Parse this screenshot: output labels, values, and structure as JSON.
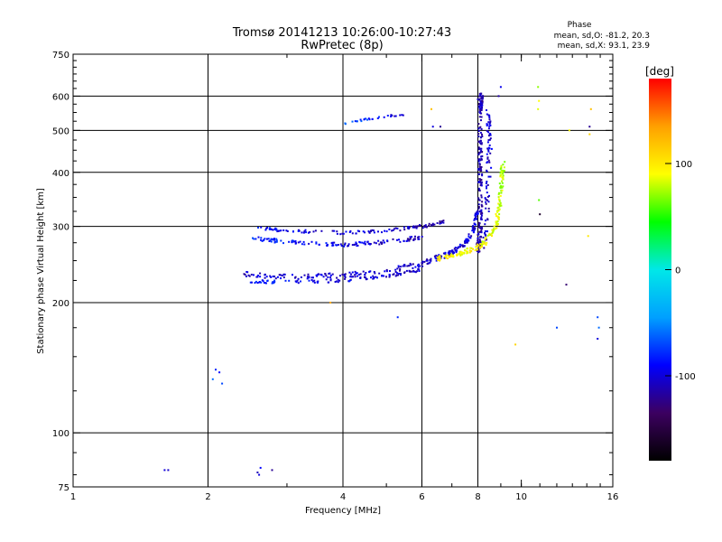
{
  "header": {
    "title_line1": "Tromsø 20141213 10:26:00-10:27:43",
    "title_line2": "RwPretec (8p)",
    "phase_heading": "Phase",
    "phase_stats_o": "mean, sd,O: -81.2, 20.3",
    "phase_stats_x": "mean, sd,X:  93.1, 23.9"
  },
  "chart_data": {
    "type": "scatter",
    "title": "Tromsø 20141213 10:26:00-10:27:43",
    "subtitle": "RwPretec (8p)",
    "xlabel": "Frequency [MHz]",
    "ylabel": "Stationary phase Virtual Height [km]",
    "x_scale": "log",
    "y_scale": "log",
    "xlim": [
      1,
      16
    ],
    "ylim": [
      75,
      750
    ],
    "xticks": [
      1,
      2,
      4,
      6,
      8,
      10,
      16
    ],
    "xtick_labels": [
      "1",
      "2",
      "4",
      "6",
      "8",
      "10",
      "16"
    ],
    "xgrid": [
      2,
      4,
      6,
      8
    ],
    "xminor": [
      3,
      5,
      7,
      9,
      10,
      11,
      12,
      13,
      14,
      15
    ],
    "yticks": [
      75,
      100,
      200,
      300,
      400,
      500,
      600,
      750
    ],
    "ytick_labels": [
      "75",
      "100",
      "200",
      "300",
      "400",
      "500",
      "600",
      "750"
    ],
    "ygrid": [
      100,
      200,
      300,
      400,
      500,
      600
    ],
    "yminor": [
      80,
      90,
      125,
      150,
      175,
      225,
      250,
      275,
      325,
      350,
      375,
      425,
      450,
      475,
      525,
      550,
      575,
      625,
      650,
      675,
      700,
      725
    ],
    "grid": true,
    "colorbar": {
      "label": "[deg]",
      "range": [
        -180,
        180
      ],
      "ticks": [
        100,
        0,
        -100
      ],
      "tick_labels": [
        "100",
        "0",
        "-100"
      ],
      "colors": [
        "#000000",
        "#3c0060",
        "#0000ff",
        "#00a0ff",
        "#00e8e8",
        "#00ff00",
        "#ffff00",
        "#ffa000",
        "#ff0000"
      ]
    },
    "series": [
      {
        "polyline": [
          [
            2.4,
            233
          ],
          [
            3.0,
            229
          ],
          [
            4.0,
            231
          ],
          [
            5.0,
            236
          ],
          [
            6.0,
            246
          ],
          [
            6.8,
            258
          ],
          [
            7.4,
            270
          ],
          [
            7.8,
            290
          ],
          [
            8.0,
            330
          ]
        ],
        "phase": [
          -105,
          -100
        ],
        "count": 260,
        "jitter_x": 0.008,
        "jitter_y": 0.014
      },
      {
        "polyline": [
          [
            2.4,
            224
          ],
          [
            3.0,
            223
          ],
          [
            4.0,
            225
          ],
          [
            5.0,
            230
          ],
          [
            6.0,
            238
          ]
        ],
        "phase": [
          -80,
          -110
        ],
        "count": 100,
        "jitter_x": 0.008,
        "jitter_y": 0.008
      },
      {
        "polyline": [
          [
            2.5,
            282
          ],
          [
            3.0,
            276
          ],
          [
            4.0,
            272
          ],
          [
            5.0,
            276
          ],
          [
            6.0,
            283
          ]
        ],
        "phase": [
          -80,
          -110
        ],
        "count": 130,
        "jitter_x": 0.008,
        "jitter_y": 0.01
      },
      {
        "polyline": [
          [
            2.6,
            297
          ],
          [
            3.0,
            293
          ],
          [
            4.0,
            290
          ],
          [
            5.0,
            293
          ],
          [
            6.0,
            300
          ],
          [
            6.8,
            308
          ]
        ],
        "phase": [
          -90,
          -115
        ],
        "count": 120,
        "jitter_x": 0.008,
        "jitter_y": 0.008
      },
      {
        "polyline": [
          [
            8.0,
            260
          ],
          [
            8.1,
            300
          ],
          [
            8.1,
            380
          ],
          [
            8.1,
            470
          ],
          [
            8.1,
            560
          ],
          [
            8.15,
            610
          ]
        ],
        "phase": [
          -115,
          -110
        ],
        "count": 220,
        "jitter_x": 0.01,
        "jitter_y": 0.01
      },
      {
        "polyline": [
          [
            8.3,
            270
          ],
          [
            8.4,
            350
          ],
          [
            8.5,
            450
          ],
          [
            8.45,
            550
          ]
        ],
        "phase": [
          -110,
          -100
        ],
        "count": 80,
        "jitter_x": 0.012,
        "jitter_y": 0.015
      },
      {
        "polyline": [
          [
            6.5,
            252
          ],
          [
            7.5,
            262
          ],
          [
            8.2,
            272
          ],
          [
            8.8,
            300
          ],
          [
            9.0,
            360
          ],
          [
            9.1,
            420
          ]
        ],
        "phase": [
          100,
          75
        ],
        "count": 180,
        "jitter_x": 0.01,
        "jitter_y": 0.012
      },
      {
        "polyline": [
          [
            4.0,
            518
          ],
          [
            4.5,
            530
          ],
          [
            5.0,
            540
          ],
          [
            5.5,
            545
          ]
        ],
        "phase": [
          -60,
          -110
        ],
        "count": 28,
        "jitter_x": 0.004,
        "jitter_y": 0.006
      }
    ],
    "scattered_points": [
      {
        "x": 1.6,
        "y": 82,
        "phase": -100
      },
      {
        "x": 1.63,
        "y": 82,
        "phase": -105
      },
      {
        "x": 2.08,
        "y": 140,
        "phase": -80
      },
      {
        "x": 2.12,
        "y": 138,
        "phase": -90
      },
      {
        "x": 2.15,
        "y": 130,
        "phase": -70
      },
      {
        "x": 2.05,
        "y": 133,
        "phase": -60
      },
      {
        "x": 2.58,
        "y": 81,
        "phase": -110
      },
      {
        "x": 2.6,
        "y": 80,
        "phase": -100
      },
      {
        "x": 2.62,
        "y": 83,
        "phase": -90
      },
      {
        "x": 2.78,
        "y": 82,
        "phase": -120
      },
      {
        "x": 3.75,
        "y": 200,
        "phase": 130
      },
      {
        "x": 5.3,
        "y": 185,
        "phase": -80
      },
      {
        "x": 6.3,
        "y": 560,
        "phase": 120
      },
      {
        "x": 6.35,
        "y": 510,
        "phase": -100
      },
      {
        "x": 6.6,
        "y": 510,
        "phase": -120
      },
      {
        "x": 8.0,
        "y": 590,
        "phase": -110
      },
      {
        "x": 8.9,
        "y": 600,
        "phase": -115
      },
      {
        "x": 9.0,
        "y": 630,
        "phase": -95
      },
      {
        "x": 9.7,
        "y": 160,
        "phase": 110
      },
      {
        "x": 10.9,
        "y": 630,
        "phase": 70
      },
      {
        "x": 10.95,
        "y": 585,
        "phase": 90
      },
      {
        "x": 10.9,
        "y": 560,
        "phase": 85
      },
      {
        "x": 11.0,
        "y": 320,
        "phase": -160
      },
      {
        "x": 10.95,
        "y": 345,
        "phase": 60
      },
      {
        "x": 12.0,
        "y": 175,
        "phase": -70
      },
      {
        "x": 12.6,
        "y": 220,
        "phase": -130
      },
      {
        "x": 14.3,
        "y": 560,
        "phase": 120
      },
      {
        "x": 14.2,
        "y": 510,
        "phase": -120
      },
      {
        "x": 14.2,
        "y": 490,
        "phase": 110
      },
      {
        "x": 14.8,
        "y": 185,
        "phase": -70
      },
      {
        "x": 14.9,
        "y": 175,
        "phase": -60
      },
      {
        "x": 14.8,
        "y": 165,
        "phase": -100
      },
      {
        "x": 14.1,
        "y": 285,
        "phase": 100
      },
      {
        "x": 12.8,
        "y": 500,
        "phase": 90
      }
    ]
  }
}
